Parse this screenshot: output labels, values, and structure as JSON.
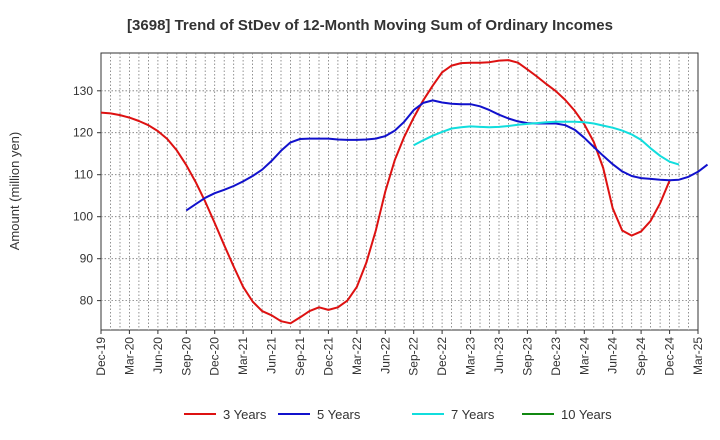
{
  "chart_data": {
    "type": "line",
    "title": "[3698]  Trend of StDev of 12-Month Moving Sum of Ordinary Incomes",
    "xlabel": "",
    "ylabel": "Amount (million yen)",
    "ylim": [
      73,
      139
    ],
    "yticks": [
      80,
      90,
      100,
      110,
      120,
      130
    ],
    "x_tick_labels": [
      "Dec-19",
      "Mar-20",
      "Jun-20",
      "Sep-20",
      "Dec-20",
      "Mar-21",
      "Jun-21",
      "Sep-21",
      "Dec-21",
      "Mar-22",
      "Jun-22",
      "Sep-22",
      "Dec-22",
      "Mar-23",
      "Jun-23",
      "Sep-23",
      "Dec-23",
      "Mar-24",
      "Jun-24",
      "Sep-24",
      "Dec-24",
      "Mar-25"
    ],
    "grid": true,
    "legend_position": "bottom",
    "series": [
      {
        "name": "3 Years",
        "color": "#dd1111",
        "start_index": 0,
        "values": [
          124.8,
          124.6,
          124.2,
          123.6,
          122.8,
          121.8,
          120.4,
          118.5,
          115.8,
          112.3,
          108.2,
          103.6,
          98.5,
          93.2,
          88.1,
          83.3,
          79.8,
          77.5,
          76.5,
          75.1,
          74.6,
          76.0,
          77.5,
          78.4,
          77.8,
          78.4,
          80.0,
          83.3,
          89.0,
          96.7,
          106.0,
          113.5,
          119.0,
          123.6,
          127.7,
          131.2,
          134.4,
          136.0,
          136.6,
          136.7,
          136.7,
          136.8,
          137.2,
          137.3,
          136.7,
          135.1,
          133.4,
          131.6,
          129.9,
          127.8,
          125.2,
          122.0,
          117.8,
          111.6,
          102.0,
          96.7,
          95.5,
          96.5,
          99.0,
          103.2,
          108.6
        ]
      },
      {
        "name": "5 Years",
        "color": "#1111cc",
        "start_index": 9,
        "values": [
          101.5,
          103.0,
          104.5,
          105.6,
          106.4,
          107.3,
          108.4,
          109.7,
          111.2,
          113.3,
          115.7,
          117.7,
          118.5,
          118.6,
          118.6,
          118.6,
          118.4,
          118.3,
          118.3,
          118.4,
          118.6,
          119.2,
          120.5,
          122.6,
          125.4,
          127.1,
          127.7,
          127.2,
          126.9,
          126.8,
          126.8,
          126.3,
          125.4,
          124.3,
          123.4,
          122.7,
          122.3,
          122.2,
          122.2,
          122.2,
          121.8,
          120.7,
          118.8,
          116.6,
          114.5,
          112.5,
          110.8,
          109.7,
          109.2,
          109.0,
          108.8,
          108.7,
          108.8,
          109.5,
          110.7,
          112.4
        ]
      },
      {
        "name": "7 Years",
        "color": "#11dddd",
        "start_index": 33,
        "values": [
          117.0,
          118.2,
          119.3,
          120.2,
          121.0,
          121.3,
          121.5,
          121.4,
          121.3,
          121.4,
          121.6,
          121.9,
          122.1,
          122.3,
          122.5,
          122.6,
          122.6,
          122.6,
          122.5,
          122.2,
          121.7,
          121.2,
          120.5,
          119.6,
          118.3,
          116.3,
          114.5,
          113.1,
          112.4
        ]
      },
      {
        "name": "10 Years",
        "color": "#118811",
        "start_index": 0,
        "values": []
      }
    ]
  }
}
